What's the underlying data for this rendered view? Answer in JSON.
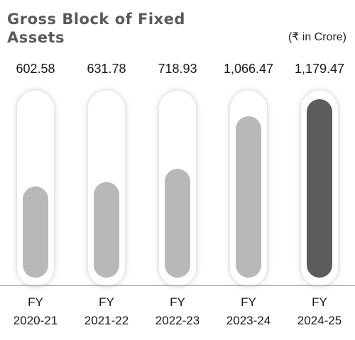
{
  "chart_data": {
    "type": "bar",
    "title": "Gross Block of Fixed Assets",
    "unit_label": "(₹ in Crore)",
    "categories": [
      [
        "FY",
        "2020-21"
      ],
      [
        "FY",
        "2021-22"
      ],
      [
        "FY",
        "2022-23"
      ],
      [
        "FY",
        "2023-24"
      ],
      [
        "FY",
        "2024-25"
      ]
    ],
    "values": [
      602.58,
      631.78,
      718.93,
      1066.47,
      1179.47
    ],
    "value_labels": [
      "602.58",
      "631.78",
      "718.93",
      "1,066.47",
      "1,179.47"
    ],
    "ylim": [
      0,
      1179.47
    ],
    "grid": false,
    "legend": "none",
    "colors": {
      "bar": "#b8b8b8",
      "bar_highlight": "#5c5c5c",
      "track": "#ffffff",
      "track_shadow": "#d0d0d0",
      "baseline": "#7a7a7a"
    },
    "highlight_index": 4
  }
}
